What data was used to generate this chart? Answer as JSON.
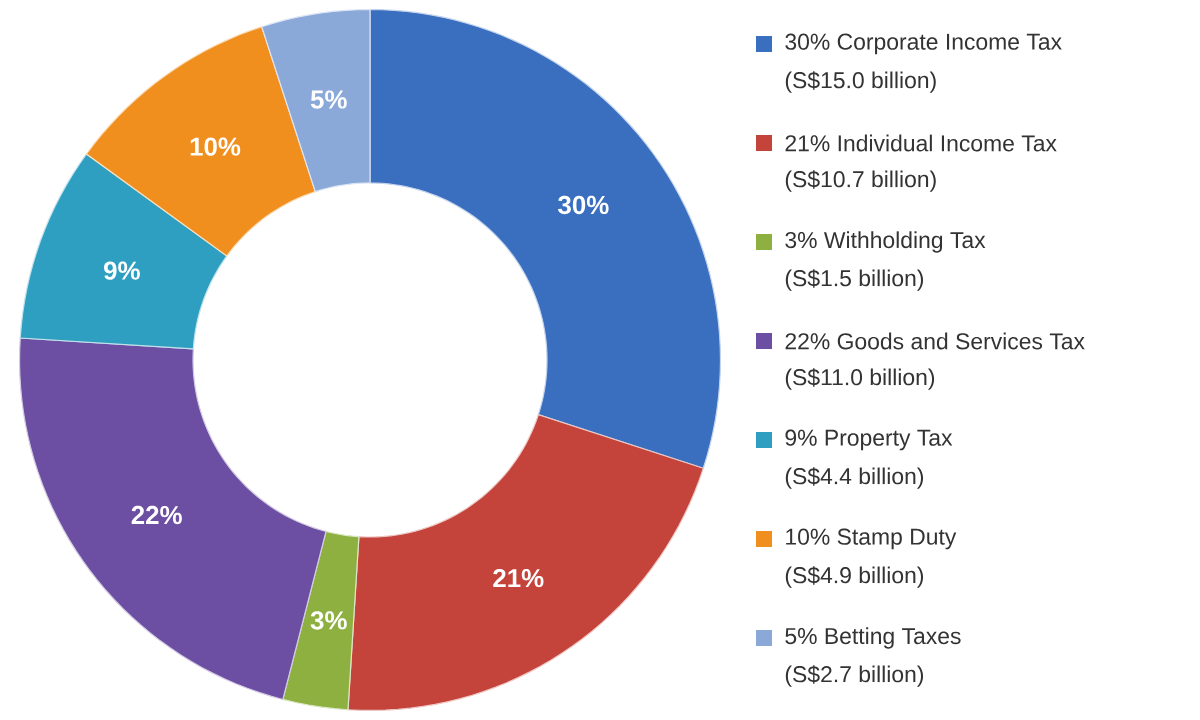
{
  "chart_data": {
    "type": "donut",
    "categories": [
      "30% Corporate Income Tax",
      "21% Individual Income Tax",
      "3% Withholding Tax",
      "22% Goods and Services Tax",
      "9% Property Tax",
      "10% Stamp Duty",
      "5% Betting Taxes"
    ],
    "values": [
      30,
      21,
      3,
      22,
      9,
      10,
      5
    ],
    "colors": [
      "#3a6fc0",
      "#c4433a",
      "#8db040",
      "#6c4fa2",
      "#2e9fc0",
      "#f08f1e",
      "#8aa8d8"
    ],
    "value_labels": [
      "30%",
      "21%",
      "3%",
      "22%",
      "9%",
      "10%",
      "5%"
    ],
    "legend": "right",
    "annotations": [
      "(S$15.0 billion)",
      "(S$10.7 billion)",
      "(S$1.5 billion)",
      "(S$11.0 billion)",
      "(S$4.4 billion)",
      "(S$4.9 billion)",
      "(S$2.7 billion)"
    ]
  }
}
